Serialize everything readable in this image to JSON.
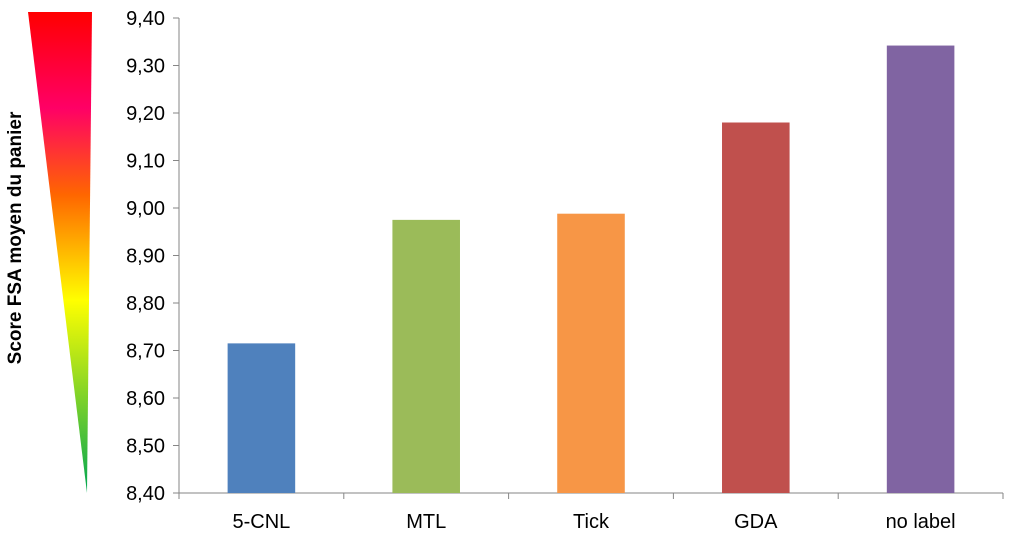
{
  "chart_data": {
    "type": "bar",
    "ylabel": "Score FSA moyen du panier",
    "ylim": [
      8.4,
      9.4
    ],
    "yticks": [
      "8,40",
      "8,50",
      "8,60",
      "8,70",
      "8,80",
      "8,90",
      "9,00",
      "9,10",
      "9,20",
      "9,30",
      "9,40"
    ],
    "categories": [
      "5-CNL",
      "MTL",
      "Tick",
      "GDA",
      "no label"
    ],
    "values": [
      8.715,
      8.975,
      8.988,
      9.18,
      9.342
    ],
    "colors": [
      "#4f81bd",
      "#9bbb59",
      "#f79646",
      "#c0504d",
      "#8064a2"
    ],
    "grid": false,
    "legend": "none",
    "color_scale": [
      "#00a651",
      "#ffff00",
      "#ff6600",
      "#ff0066",
      "#ff0000"
    ]
  }
}
